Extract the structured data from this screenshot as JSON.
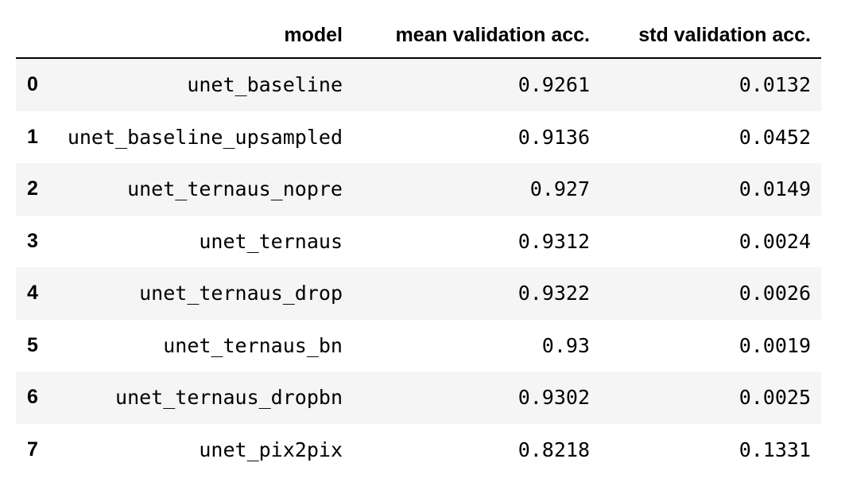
{
  "table": {
    "columns": {
      "index": "",
      "model": "model",
      "mean": "mean validation acc.",
      "std": "std validation acc."
    },
    "rows": [
      {
        "index": "0",
        "model": "unet_baseline",
        "mean": "0.9261",
        "std": "0.0132"
      },
      {
        "index": "1",
        "model": "unet_baseline_upsampled",
        "mean": "0.9136",
        "std": "0.0452"
      },
      {
        "index": "2",
        "model": "unet_ternaus_nopre",
        "mean": "0.927",
        "std": "0.0149"
      },
      {
        "index": "3",
        "model": "unet_ternaus",
        "mean": "0.9312",
        "std": "0.0024"
      },
      {
        "index": "4",
        "model": "unet_ternaus_drop",
        "mean": "0.9322",
        "std": "0.0026"
      },
      {
        "index": "5",
        "model": "unet_ternaus_bn",
        "mean": "0.93",
        "std": "0.0019"
      },
      {
        "index": "6",
        "model": "unet_ternaus_dropbn",
        "mean": "0.9302",
        "std": "0.0025"
      },
      {
        "index": "7",
        "model": "unet_pix2pix",
        "mean": "0.8218",
        "std": "0.1331"
      }
    ]
  },
  "chart_data": {
    "type": "table",
    "columns": [
      "model",
      "mean validation acc.",
      "std validation acc."
    ],
    "index": [
      0,
      1,
      2,
      3,
      4,
      5,
      6,
      7
    ],
    "rows": [
      [
        "unet_baseline",
        0.9261,
        0.0132
      ],
      [
        "unet_baseline_upsampled",
        0.9136,
        0.0452
      ],
      [
        "unet_ternaus_nopre",
        0.927,
        0.0149
      ],
      [
        "unet_ternaus",
        0.9312,
        0.0024
      ],
      [
        "unet_ternaus_drop",
        0.9322,
        0.0026
      ],
      [
        "unet_ternaus_bn",
        0.93,
        0.0019
      ],
      [
        "unet_ternaus_dropbn",
        0.9302,
        0.0025
      ],
      [
        "unet_pix2pix",
        0.8218,
        0.1331
      ]
    ]
  }
}
